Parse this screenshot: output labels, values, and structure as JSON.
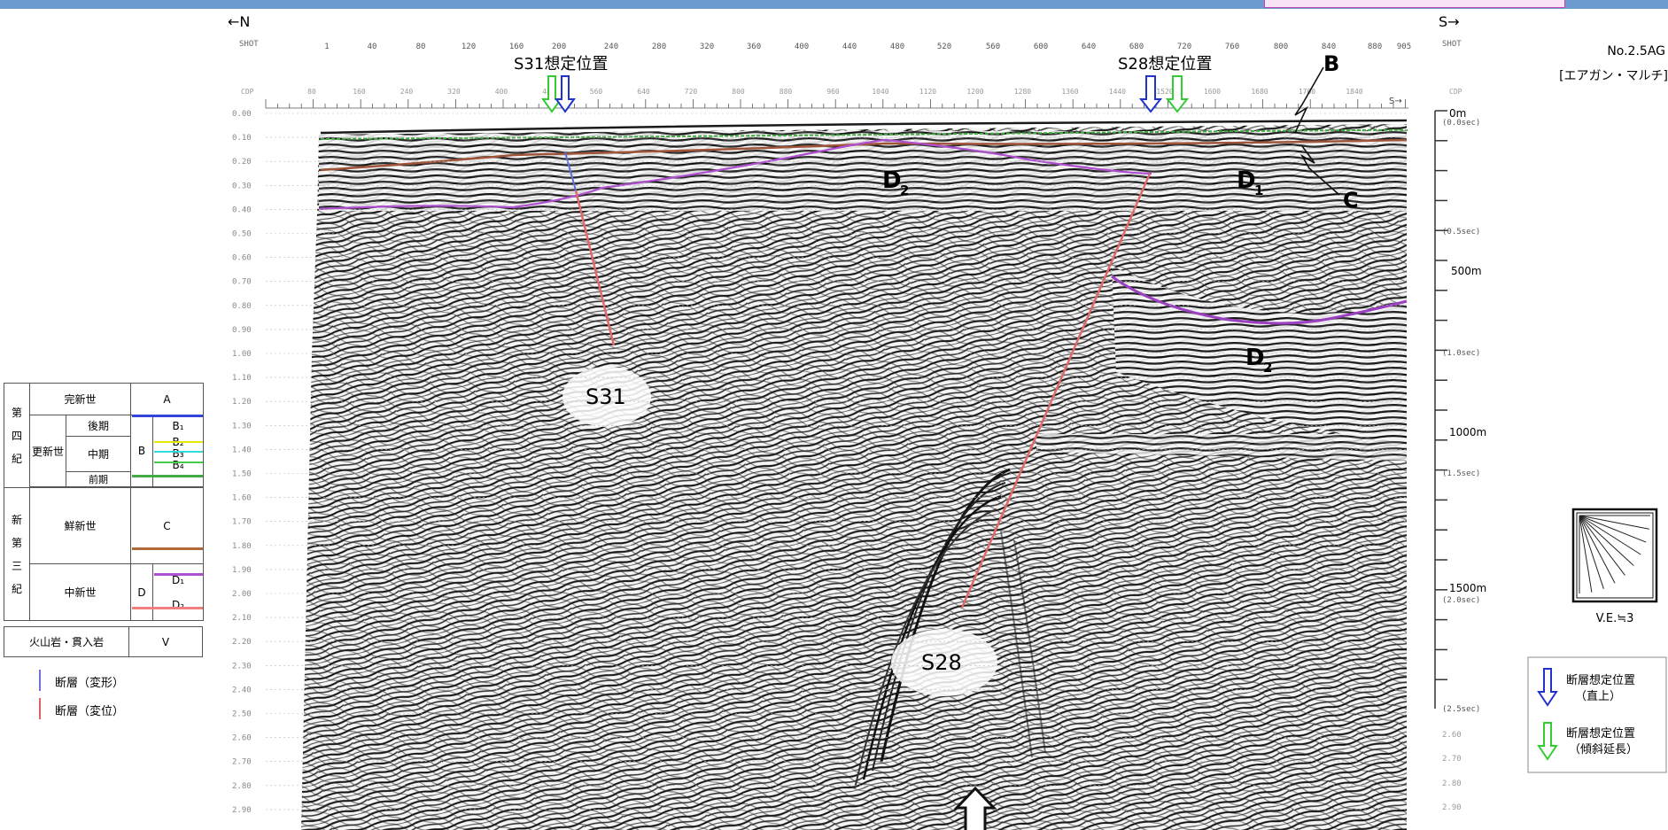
{
  "header": {
    "dir_north": "←N",
    "dir_south": "S→",
    "shot_label": "SHOT",
    "shot_label_right": "SHOT",
    "cdp_label": "CDP",
    "cdp_label_right": "CDP",
    "shot_ticks": [
      "1",
      "40",
      "80",
      "120",
      "160",
      "200",
      "240",
      "280",
      "320",
      "360",
      "400",
      "440",
      "480",
      "520",
      "560",
      "600",
      "640",
      "680",
      "720",
      "760",
      "800",
      "840",
      "880",
      "905"
    ],
    "cdp_ticks": [
      "80",
      "160",
      "240",
      "320",
      "400",
      "480",
      "560",
      "640",
      "720",
      "800",
      "880",
      "960",
      "1040",
      "1120",
      "1200",
      "1280",
      "1360",
      "1440",
      "1520",
      "1600",
      "1680",
      "1760",
      "1840"
    ],
    "s_arrow_small": "S→"
  },
  "title": {
    "line1": "No.2.5AG",
    "line2": "[エアガン・マルチ]"
  },
  "time_axis": [
    "0.00",
    "0.10",
    "0.20",
    "0.30",
    "0.40",
    "0.50",
    "0.60",
    "0.70",
    "0.80",
    "0.90",
    "1.00",
    "1.10",
    "1.20",
    "1.30",
    "1.40",
    "1.50",
    "1.60",
    "1.70",
    "1.80",
    "1.90",
    "2.00",
    "2.10",
    "2.20",
    "2.30",
    "2.40",
    "2.50",
    "2.60",
    "2.70",
    "2.80",
    "2.90"
  ],
  "depth_axis": {
    "d0": "0m",
    "d0_sec": "(0.0sec)",
    "d05_sec": "(0.5sec)",
    "d500": "500m",
    "d10_sec": "(1.0sec)",
    "d1000": "1000m",
    "d15_sec": "(1.5sec)",
    "d1500": "1500m",
    "d1500_sec": "(2.0sec)",
    "d25_sec": "(2.5sec)",
    "tail": [
      "2.60",
      "2.70",
      "2.80",
      "2.90"
    ]
  },
  "annotations": {
    "s31_pos": "S31想定位置",
    "s28_pos": "S28想定位置",
    "label_b": "B",
    "label_c": "C",
    "label_d2_top": "D",
    "label_d2_top_sub": "2",
    "label_d1": "D",
    "label_d1_sub": "1",
    "label_d2_right": "D",
    "label_d2_right_sub": "2",
    "fault_s31": "S31",
    "fault_s28": "S28"
  },
  "legend": {
    "era_q": [
      "第",
      "四",
      "紀"
    ],
    "era_n": [
      "新",
      "第",
      "三",
      "紀"
    ],
    "holocene": "完新世",
    "holocene_unit": "A",
    "pleistocene": "更新世",
    "late": "後期",
    "middle": "中期",
    "early": "前期",
    "unit_b": "B",
    "b1": "B₁",
    "b2": "B₂",
    "b3": "B₃",
    "b4": "B₄",
    "pliocene": "鮮新世",
    "unit_c": "C",
    "miocene": "中新世",
    "unit_d": "D",
    "d1": "D₁",
    "d2": "D₂",
    "volcanic": "火山岩・貫入岩",
    "unit_v": "V",
    "fault_deform": "断層（変形）",
    "fault_disp": "断層（変位）",
    "colors": {
      "a_line": "#3344dd",
      "b1": "#e8e800",
      "b2": "#33dddd",
      "b3": "#44cc44",
      "c_line": "#b06a3a",
      "d_line": "#b050d0",
      "v_line": "#f08080",
      "fault_deform": "#7070dd",
      "fault_disp": "#e06060"
    }
  },
  "ve_box": {
    "label": "V.E.≒3"
  },
  "arrow_legend": {
    "blue_line1": "断層想定位置",
    "blue_line2": "（直上）",
    "green_line1": "断層想定位置",
    "green_line2": "（傾斜延長）"
  }
}
